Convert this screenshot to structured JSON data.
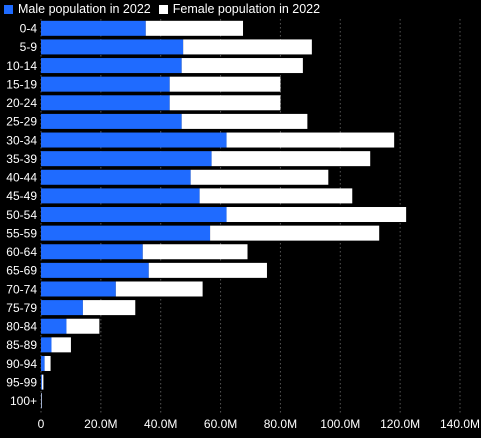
{
  "chart_data": {
    "type": "bar",
    "orientation": "horizontal",
    "stacked": true,
    "categories": [
      "0-4",
      "5-9",
      "10-14",
      "15-19",
      "20-24",
      "25-29",
      "30-34",
      "35-39",
      "40-44",
      "45-49",
      "50-54",
      "55-59",
      "60-64",
      "65-69",
      "70-74",
      "75-79",
      "80-84",
      "85-89",
      "90-94",
      "95-99",
      "100+"
    ],
    "series": [
      {
        "name": "Male population in 2022",
        "color": "#1f6bff",
        "values": [
          35.0,
          47.5,
          47.0,
          43.0,
          43.0,
          47.0,
          62.0,
          57.0,
          50.0,
          53.0,
          62.0,
          56.5,
          34.0,
          36.0,
          25.0,
          14.0,
          8.5,
          3.5,
          1.2,
          0.3,
          0.05
        ]
      },
      {
        "name": "Female population in 2022",
        "color": "#ffffff",
        "values": [
          32.5,
          43.0,
          40.5,
          37.0,
          37.0,
          42.0,
          56.0,
          53.0,
          46.0,
          51.0,
          60.0,
          56.5,
          35.0,
          39.5,
          29.0,
          17.5,
          11.0,
          6.5,
          2.0,
          0.5,
          0.1
        ]
      }
    ],
    "x_ticks": [
      "0",
      "20.0M",
      "40.0M",
      "60.0M",
      "80.0M",
      "100.0M",
      "120.0M",
      "140.0M"
    ],
    "xlim": [
      0,
      140
    ],
    "unit": "M",
    "legend_placement": "top-left",
    "grid": true,
    "colors": {
      "background": "#000000",
      "grid": "#555555",
      "male": "#1f6bff",
      "female": "#ffffff"
    }
  }
}
